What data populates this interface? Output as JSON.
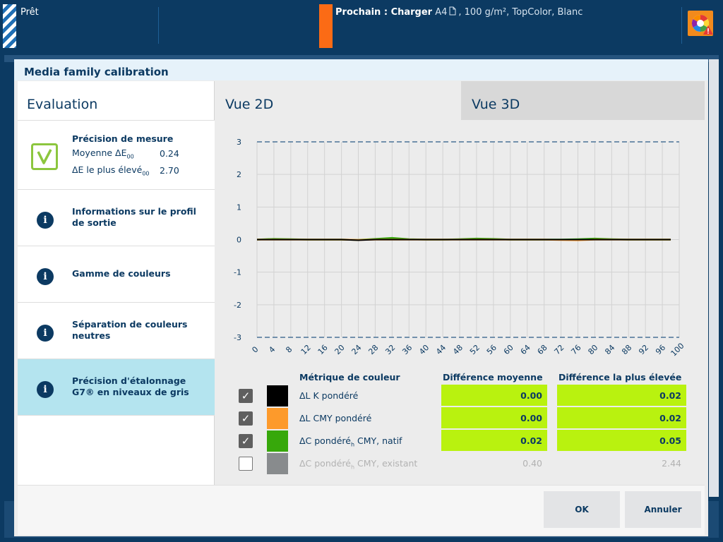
{
  "topbar": {
    "status": "Prêt",
    "next_prefix": "Prochain : Charger",
    "next_size": "A4",
    "next_details": ", 100 g/m², TopColor, Blanc"
  },
  "dialog": {
    "title": "Media family calibration",
    "evaluation_title": "Evaluation",
    "nav": [
      {
        "label": "Précision de mesure",
        "icon": "check-icon",
        "metrics": [
          {
            "label": "Moyenne ΔE",
            "sub": "00",
            "value": "0.24"
          },
          {
            "label": "ΔE le plus élevé",
            "sub": "00",
            "value": "2.70"
          }
        ]
      },
      {
        "label": "Informations sur le profil de sortie",
        "icon": "info-icon"
      },
      {
        "label": "Gamme de couleurs",
        "icon": "info-icon"
      },
      {
        "label": "Séparation de couleurs neutres",
        "icon": "info-icon"
      },
      {
        "label": "Précision d'étalonnage G7® en niveaux de gris",
        "icon": "info-icon",
        "selected": true
      }
    ],
    "tabs": {
      "tab_2d": "Vue 2D",
      "tab_3d": "Vue 3D"
    },
    "table": {
      "headers": {
        "metric": "Métrique de couleur",
        "avg": "Différence moyenne",
        "max": "Différence la plus élevée"
      },
      "rows": [
        {
          "checked": true,
          "color": "#000000",
          "label": "ΔL K pondéré",
          "avg": "0.00",
          "max": "0.02",
          "highlight": true
        },
        {
          "checked": true,
          "color": "#fd9a2b",
          "label": "ΔL CMY pondéré",
          "avg": "0.00",
          "max": "0.02",
          "highlight": true
        },
        {
          "checked": true,
          "color": "#37a80b",
          "label": "ΔC pondéré",
          "label_sub": "h",
          "label_suffix": " CMY, natif",
          "avg": "0.02",
          "max": "0.05",
          "highlight": true
        },
        {
          "checked": false,
          "color": "#888b8d",
          "label": "ΔC pondéré",
          "label_sub": "h",
          "label_suffix": " CMY, existant",
          "avg": "0.40",
          "max": "2.44",
          "highlight": false
        }
      ]
    },
    "buttons": {
      "ok": "OK",
      "cancel": "Annuler"
    }
  },
  "colors": {
    "accent_green": "#b9f20f",
    "navy": "#0c3a62",
    "selected_nav": "#b4e4ef",
    "next_marker": "#fb6b15"
  },
  "chart_data": {
    "type": "line",
    "xlim": [
      0,
      100
    ],
    "ylim": [
      -3,
      3
    ],
    "x_ticks": [
      "0",
      "4",
      "8",
      "12",
      "16",
      "20",
      "24",
      "28",
      "32",
      "36",
      "40",
      "44",
      "48",
      "52",
      "56",
      "60",
      "64",
      "68",
      "72",
      "76",
      "80",
      "84",
      "88",
      "92",
      "96",
      "100"
    ],
    "y_ticks": [
      "3",
      "2",
      "1",
      "0",
      "-1",
      "-2",
      "-3"
    ],
    "tolerance_lines": [
      3,
      -3
    ],
    "grid": true,
    "x": [
      0,
      4,
      8,
      12,
      16,
      20,
      24,
      28,
      32,
      36,
      40,
      44,
      48,
      52,
      56,
      60,
      64,
      68,
      72,
      76,
      80,
      84,
      88,
      92,
      96,
      98
    ],
    "series": [
      {
        "color": "#37a80b",
        "values": [
          0.0,
          0.02,
          0.01,
          0.0,
          0.0,
          0.0,
          -0.01,
          0.02,
          0.05,
          0.01,
          0.0,
          0.0,
          0.01,
          0.03,
          0.02,
          0.0,
          0.0,
          0.0,
          0.0,
          0.01,
          0.03,
          0.01,
          0.0,
          0.0,
          0.0,
          0.0
        ]
      },
      {
        "color": "#fd9a2b",
        "values": [
          0.0,
          0.0,
          0.0,
          0.0,
          0.0,
          0.0,
          -0.01,
          0.0,
          0.0,
          0.0,
          0.0,
          0.0,
          0.0,
          0.0,
          0.0,
          0.0,
          0.0,
          0.0,
          -0.01,
          -0.02,
          0.0,
          0.0,
          0.0,
          0.0,
          0.0,
          0.0
        ]
      },
      {
        "color": "#000000",
        "values": [
          0.0,
          0.0,
          0.0,
          0.0,
          0.0,
          0.0,
          -0.02,
          0.0,
          0.0,
          0.0,
          0.0,
          0.0,
          0.0,
          0.0,
          0.0,
          0.0,
          0.0,
          0.0,
          0.0,
          0.0,
          0.0,
          0.0,
          0.0,
          0.0,
          0.0,
          0.0
        ]
      }
    ]
  }
}
